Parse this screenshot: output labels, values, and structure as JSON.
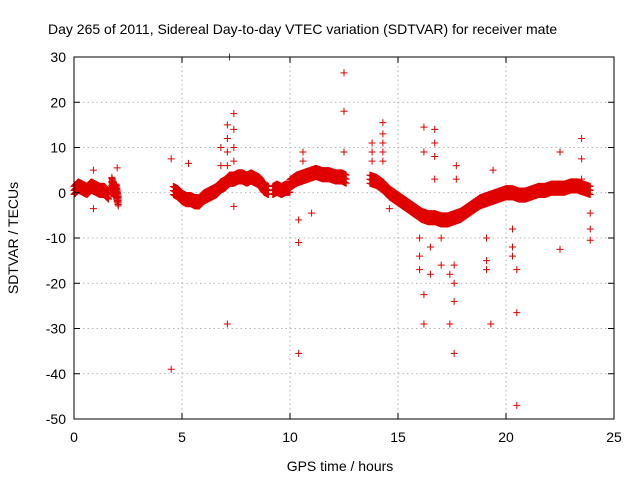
{
  "chart_data": {
    "type": "scatter",
    "title": "Day 265 of 2011, Sidereal Day-to-day VTEC variation (SDTVAR) for receiver mate",
    "xlabel": "GPS time / hours",
    "ylabel": "SDTVAR / TECUs",
    "xlim": [
      0,
      25
    ],
    "ylim": [
      -50,
      30
    ],
    "xticks": [
      0,
      5,
      10,
      15,
      20,
      25
    ],
    "yticks": [
      -50,
      -40,
      -30,
      -20,
      -10,
      0,
      10,
      20,
      30
    ],
    "grid": true,
    "marker": "+",
    "color": "#e00000",
    "series": [
      {
        "name": "SDTVAR",
        "segments": [
          {
            "x": [
              0.0,
              0.2,
              0.4,
              0.6,
              0.8,
              1.0,
              1.2,
              1.4,
              1.6
            ],
            "y": [
              0.5,
              1.5,
              1.0,
              0.5,
              1.5,
              1.0,
              0.5,
              0.5,
              -0.5
            ]
          },
          {
            "x": [
              1.75,
              1.85,
              1.95,
              2.05
            ],
            "y": [
              2.5,
              0.0,
              1.0,
              -2.0
            ]
          },
          {
            "x": [
              4.6,
              4.8,
              5.0,
              5.2,
              5.4,
              5.6,
              5.8,
              6.0,
              6.2,
              6.4,
              6.6,
              6.8,
              7.0,
              7.2,
              7.4,
              7.6,
              7.8,
              8.0,
              8.2,
              8.4,
              8.6,
              8.8,
              9.0
            ],
            "y": [
              0.5,
              0.0,
              -1.0,
              -1.5,
              -1.5,
              -2.0,
              -2.0,
              -1.0,
              -0.5,
              0.0,
              0.5,
              1.5,
              2.0,
              3.0,
              3.0,
              3.5,
              3.5,
              3.0,
              3.5,
              3.0,
              2.5,
              1.0,
              0.5
            ]
          },
          {
            "x": [
              9.2,
              9.4,
              9.6,
              9.8,
              10.0
            ],
            "y": [
              0.5,
              1.0,
              0.5,
              1.0,
              1.0
            ]
          },
          {
            "x": [
              10.0,
              10.3,
              10.6,
              10.9,
              11.2,
              11.5,
              11.8,
              12.1,
              12.4,
              12.6
            ],
            "y": [
              2.0,
              3.0,
              3.5,
              4.0,
              4.5,
              4.0,
              4.0,
              3.5,
              3.5,
              3.0
            ]
          },
          {
            "x": [
              13.7,
              14.0,
              14.3,
              14.6,
              14.9,
              15.2,
              15.5,
              15.8,
              16.1,
              16.4,
              16.7,
              17.0,
              17.3,
              17.6,
              17.9,
              18.2,
              18.5,
              18.8,
              19.1,
              19.4,
              19.7,
              20.0,
              20.3,
              20.6,
              20.9,
              21.2,
              21.5,
              21.8,
              22.1,
              22.4,
              22.7,
              23.0,
              23.3,
              23.6,
              23.9
            ],
            "y": [
              3.0,
              2.5,
              1.5,
              0.0,
              -1.0,
              -2.0,
              -3.0,
              -4.0,
              -5.0,
              -5.5,
              -5.5,
              -6.0,
              -6.0,
              -5.5,
              -5.0,
              -4.0,
              -3.0,
              -2.0,
              -1.5,
              -1.0,
              -0.5,
              0.0,
              0.0,
              -0.5,
              -0.5,
              0.0,
              0.5,
              0.5,
              1.0,
              1.0,
              1.0,
              1.5,
              1.5,
              1.0,
              0.5
            ]
          }
        ],
        "spikes": [
          {
            "x": 0.9,
            "y": [
              5.0,
              -3.5
            ]
          },
          {
            "x": 2.0,
            "y": [
              5.5,
              -2.0
            ]
          },
          {
            "x": 4.5,
            "y": [
              7.5,
              -39.0
            ]
          },
          {
            "x": 5.3,
            "y": [
              6.5
            ]
          },
          {
            "x": 6.8,
            "y": [
              10.0,
              6.0
            ]
          },
          {
            "x": 7.1,
            "y": [
              15.0,
              12.0,
              9.0,
              6.0,
              -29.0
            ]
          },
          {
            "x": 7.2,
            "y": [
              30.0
            ]
          },
          {
            "x": 7.4,
            "y": [
              17.5,
              14.0,
              10.0,
              7.0,
              -3.0
            ]
          },
          {
            "x": 10.4,
            "y": [
              -35.5,
              -11.0,
              -6.0
            ]
          },
          {
            "x": 10.6,
            "y": [
              9.0,
              7.0
            ]
          },
          {
            "x": 11.0,
            "y": [
              -4.5
            ]
          },
          {
            "x": 12.5,
            "y": [
              26.5,
              18.0,
              9.0
            ]
          },
          {
            "x": 13.8,
            "y": [
              11.0,
              9.0,
              7.0
            ]
          },
          {
            "x": 14.3,
            "y": [
              15.5,
              13.0,
              11.0,
              9.0,
              7.0
            ]
          },
          {
            "x": 14.6,
            "y": [
              -3.5
            ]
          },
          {
            "x": 16.0,
            "y": [
              -10.0,
              -14.0,
              -17.0
            ]
          },
          {
            "x": 16.2,
            "y": [
              14.5,
              9.0,
              -22.5,
              -29.0
            ]
          },
          {
            "x": 16.5,
            "y": [
              -12.0,
              -18.0
            ]
          },
          {
            "x": 16.7,
            "y": [
              14.0,
              11.0,
              8.0,
              3.0
            ]
          },
          {
            "x": 17.0,
            "y": [
              -10.0,
              -16.0
            ]
          },
          {
            "x": 17.4,
            "y": [
              -18.0,
              -29.0
            ]
          },
          {
            "x": 17.6,
            "y": [
              -16.0,
              -20.0,
              -24.0,
              -35.5
            ]
          },
          {
            "x": 17.7,
            "y": [
              6.0,
              3.0
            ]
          },
          {
            "x": 19.1,
            "y": [
              -10.0,
              -15.0,
              -17.0
            ]
          },
          {
            "x": 19.3,
            "y": [
              -29.0
            ]
          },
          {
            "x": 19.4,
            "y": [
              5.0
            ]
          },
          {
            "x": 20.3,
            "y": [
              -8.0,
              -12.0,
              -14.0
            ]
          },
          {
            "x": 20.5,
            "y": [
              -17.0,
              -26.5,
              -47.0
            ]
          },
          {
            "x": 22.5,
            "y": [
              9.0,
              -12.5
            ]
          },
          {
            "x": 23.5,
            "y": [
              12.0,
              7.5,
              3.0
            ]
          },
          {
            "x": 23.9,
            "y": [
              -4.5,
              -8.0,
              -10.5
            ]
          }
        ]
      }
    ]
  }
}
